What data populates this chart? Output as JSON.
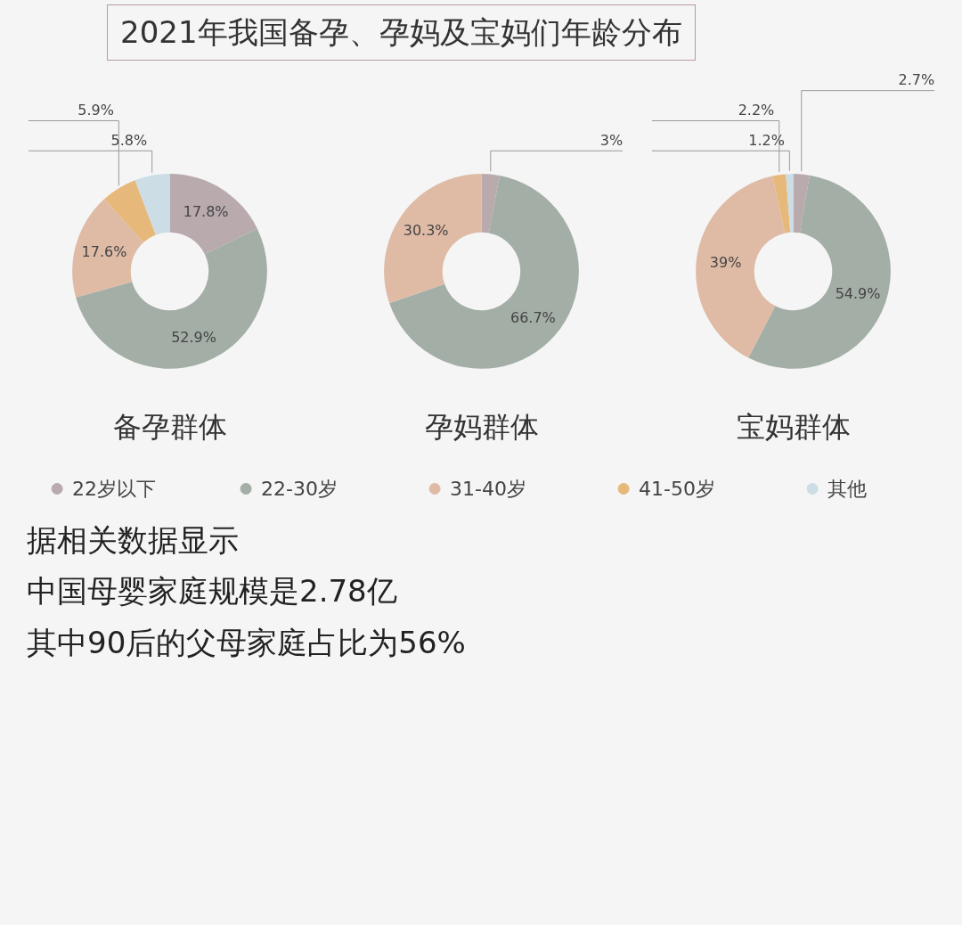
{
  "chart_data": [
    {
      "type": "donut",
      "title": "备孕群体",
      "legend": "bottom",
      "annotations": [
        "2021年我国备孕、孕妈及宝妈们年龄分布"
      ],
      "categories": [
        "22岁以下",
        "22-30岁",
        "31-40岁",
        "41-50岁",
        "其他"
      ],
      "values": [
        17.8,
        52.9,
        17.6,
        5.9,
        5.8
      ],
      "value_labels": [
        "17.8%",
        "52.9%",
        "17.6%",
        "5.9%",
        "5.8%"
      ],
      "colors": [
        "#b9aaae",
        "#a3aea6",
        "#dfbba6",
        "#e6b87a",
        "#cddde6"
      ]
    },
    {
      "type": "donut",
      "title": "孕妈群体",
      "categories": [
        null,
        null,
        null,
        null,
        null
      ],
      "values": [
        3,
        66.7,
        30.3,
        0,
        0
      ],
      "value_labels": [
        "3%",
        "66.7%",
        "30.3%",
        null,
        null
      ],
      "colors": [
        "#b9aaae",
        "#a3aea6",
        "#dfbba6",
        "#e6b87a",
        "#cddde6"
      ]
    },
    {
      "type": "donut",
      "title": "宝妈群体",
      "annotations": [
        "据相关数据显示",
        "中国母婴家庭规模是2.78亿",
        "其中90后的父母家庭占比为56%"
      ],
      "categories": [
        null,
        null,
        null,
        null,
        null
      ],
      "values": [
        2.7,
        54.9,
        39,
        2.2,
        1.2
      ],
      "value_labels": [
        "2.7%",
        "54.9%",
        "39%",
        "2.2%",
        "1.2%"
      ],
      "colors": [
        "#b9aaae",
        "#a3aea6",
        "#dfbba6",
        "#e6b87a",
        "#cddde6"
      ]
    }
  ]
}
